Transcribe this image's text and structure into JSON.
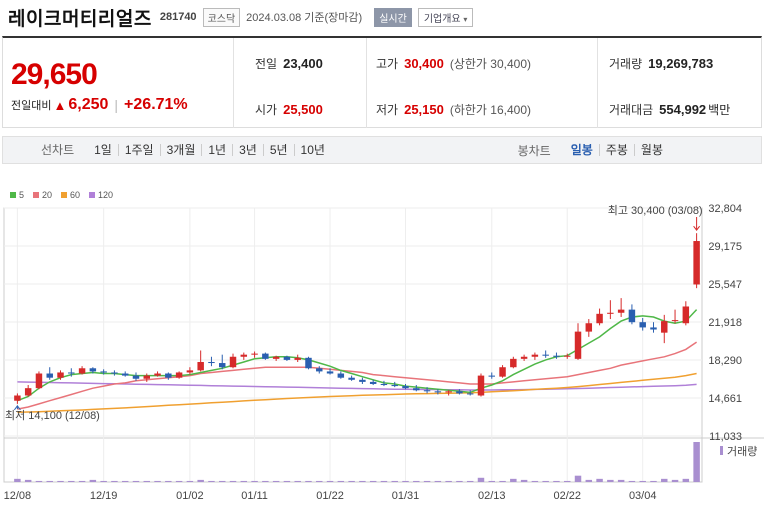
{
  "header": {
    "name": "레이크머티리얼즈",
    "code": "281740",
    "market": "코스닥",
    "date_text": "2024.03.08 기준(장마감)",
    "realtime": "실시간",
    "overview": "기업개요"
  },
  "summary": {
    "price": "29,650",
    "change_label": "전일대비",
    "change_value": "6,250",
    "change_rate": "+26.71%",
    "prev_label": "전일",
    "prev_value": "23,400",
    "open_label": "시가",
    "open_value": "25,500",
    "high_label": "고가",
    "high_value": "30,400",
    "upper_limit": "(상한가 30,400)",
    "low_label": "저가",
    "low_value": "25,150",
    "lower_limit": "(하한가 16,400)",
    "volume_label": "거래량",
    "volume_value": "19,269,783",
    "amount_label": "거래대금",
    "amount_value": "554,992",
    "amount_unit": "백만"
  },
  "periods": {
    "line_chart": "선차트",
    "items": [
      "1일",
      "1주일",
      "3개월",
      "1년",
      "3년",
      "5년",
      "10년"
    ],
    "candle_chart": "봉차트",
    "candle_items": [
      "일봉",
      "주봉",
      "월봉"
    ],
    "selected_candle": "일봉"
  },
  "colors": {
    "up": "#d62a2a",
    "down": "#2a5fb0",
    "ma5": "#4fb848",
    "ma20": "#e8747a",
    "ma60": "#f0a030",
    "ma120": "#b080d8",
    "volume": "#a98fd0"
  },
  "chart_data": {
    "type": "candlestick",
    "legend": [
      {
        "name": "5",
        "color": "#4fb848"
      },
      {
        "name": "20",
        "color": "#e8747a"
      },
      {
        "name": "60",
        "color": "#f0a030"
      },
      {
        "name": "120",
        "color": "#b080d8"
      }
    ],
    "y_ticks": [
      "32,804",
      "29,175",
      "25,547",
      "21,918",
      "18,290",
      "14,661",
      "11,033"
    ],
    "ylim": [
      11033,
      32804
    ],
    "x_ticks": [
      "12/08",
      "12/19",
      "01/02",
      "01/11",
      "01/22",
      "01/31",
      "02/13",
      "02/22",
      "03/04"
    ],
    "high_annotation": "최고 30,400 (03/08)",
    "low_annotation": "최저 14,100 (12/08)",
    "volume_label": "거래량",
    "candles": [
      {
        "o": 14400,
        "h": 15100,
        "l": 14100,
        "c": 14900
      },
      {
        "o": 14900,
        "h": 15900,
        "l": 14800,
        "c": 15600
      },
      {
        "o": 15600,
        "h": 17200,
        "l": 15500,
        "c": 17000
      },
      {
        "o": 17000,
        "h": 17600,
        "l": 16400,
        "c": 16600
      },
      {
        "o": 16600,
        "h": 17300,
        "l": 16400,
        "c": 17100
      },
      {
        "o": 17100,
        "h": 17500,
        "l": 16700,
        "c": 17000
      },
      {
        "o": 17000,
        "h": 17700,
        "l": 16900,
        "c": 17500
      },
      {
        "o": 17500,
        "h": 17600,
        "l": 17000,
        "c": 17200
      },
      {
        "o": 17200,
        "h": 17400,
        "l": 16900,
        "c": 17100
      },
      {
        "o": 17100,
        "h": 17300,
        "l": 16800,
        "c": 17000
      },
      {
        "o": 17000,
        "h": 17200,
        "l": 16700,
        "c": 16800
      },
      {
        "o": 16800,
        "h": 17100,
        "l": 16300,
        "c": 16500
      },
      {
        "o": 16500,
        "h": 17000,
        "l": 16200,
        "c": 16800
      },
      {
        "o": 16800,
        "h": 17200,
        "l": 16700,
        "c": 17000
      },
      {
        "o": 17000,
        "h": 17100,
        "l": 16400,
        "c": 16600
      },
      {
        "o": 16600,
        "h": 17200,
        "l": 16500,
        "c": 17100
      },
      {
        "o": 17100,
        "h": 17600,
        "l": 16900,
        "c": 17300
      },
      {
        "o": 17300,
        "h": 19200,
        "l": 17200,
        "c": 18100
      },
      {
        "o": 18100,
        "h": 18600,
        "l": 17700,
        "c": 18000
      },
      {
        "o": 18000,
        "h": 18800,
        "l": 17400,
        "c": 17600
      },
      {
        "o": 17600,
        "h": 18900,
        "l": 17500,
        "c": 18600
      },
      {
        "o": 18600,
        "h": 19000,
        "l": 18300,
        "c": 18800
      },
      {
        "o": 18800,
        "h": 19100,
        "l": 18500,
        "c": 18900
      },
      {
        "o": 18900,
        "h": 19000,
        "l": 18300,
        "c": 18400
      },
      {
        "o": 18400,
        "h": 18700,
        "l": 18200,
        "c": 18600
      },
      {
        "o": 18600,
        "h": 18700,
        "l": 18200,
        "c": 18300
      },
      {
        "o": 18300,
        "h": 18800,
        "l": 18100,
        "c": 18500
      },
      {
        "o": 18500,
        "h": 18600,
        "l": 17400,
        "c": 17500
      },
      {
        "o": 17500,
        "h": 17700,
        "l": 17000,
        "c": 17200
      },
      {
        "o": 17200,
        "h": 17500,
        "l": 16900,
        "c": 17000
      },
      {
        "o": 17000,
        "h": 17200,
        "l": 16500,
        "c": 16600
      },
      {
        "o": 16600,
        "h": 16800,
        "l": 16300,
        "c": 16400
      },
      {
        "o": 16400,
        "h": 16600,
        "l": 16000,
        "c": 16200
      },
      {
        "o": 16200,
        "h": 16400,
        "l": 15900,
        "c": 16000
      },
      {
        "o": 16000,
        "h": 16300,
        "l": 15800,
        "c": 15900
      },
      {
        "o": 15900,
        "h": 16200,
        "l": 15700,
        "c": 15800
      },
      {
        "o": 15800,
        "h": 16000,
        "l": 15500,
        "c": 15600
      },
      {
        "o": 15600,
        "h": 15900,
        "l": 15300,
        "c": 15400
      },
      {
        "o": 15400,
        "h": 15700,
        "l": 15100,
        "c": 15300
      },
      {
        "o": 15300,
        "h": 15500,
        "l": 15000,
        "c": 15200
      },
      {
        "o": 15200,
        "h": 15400,
        "l": 14900,
        "c": 15300
      },
      {
        "o": 15300,
        "h": 15500,
        "l": 15000,
        "c": 15100
      },
      {
        "o": 15100,
        "h": 15400,
        "l": 14900,
        "c": 15000
      },
      {
        "o": 14900,
        "h": 17000,
        "l": 14800,
        "c": 16800
      },
      {
        "o": 16800,
        "h": 17100,
        "l": 16500,
        "c": 16700
      },
      {
        "o": 16700,
        "h": 17800,
        "l": 16600,
        "c": 17600
      },
      {
        "o": 17600,
        "h": 18600,
        "l": 17500,
        "c": 18400
      },
      {
        "o": 18400,
        "h": 18800,
        "l": 18200,
        "c": 18600
      },
      {
        "o": 18600,
        "h": 19000,
        "l": 18300,
        "c": 18800
      },
      {
        "o": 18800,
        "h": 19200,
        "l": 18500,
        "c": 18700
      },
      {
        "o": 18700,
        "h": 19000,
        "l": 18400,
        "c": 18600
      },
      {
        "o": 18600,
        "h": 18900,
        "l": 18400,
        "c": 18700
      },
      {
        "o": 18400,
        "h": 21800,
        "l": 18300,
        "c": 21000
      },
      {
        "o": 21000,
        "h": 22200,
        "l": 20500,
        "c": 21800
      },
      {
        "o": 21800,
        "h": 23200,
        "l": 21600,
        "c": 22700
      },
      {
        "o": 22700,
        "h": 24000,
        "l": 22200,
        "c": 22800
      },
      {
        "o": 22800,
        "h": 24200,
        "l": 22400,
        "c": 23100
      },
      {
        "o": 23100,
        "h": 23600,
        "l": 21700,
        "c": 21900
      },
      {
        "o": 21900,
        "h": 22300,
        "l": 21100,
        "c": 21400
      },
      {
        "o": 21400,
        "h": 21900,
        "l": 20900,
        "c": 21200
      },
      {
        "o": 20900,
        "h": 22600,
        "l": 19900,
        "c": 22000
      },
      {
        "o": 22000,
        "h": 23100,
        "l": 21800,
        "c": 22100
      },
      {
        "o": 21800,
        "h": 23900,
        "l": 21600,
        "c": 23400
      },
      {
        "o": 25500,
        "h": 30400,
        "l": 25150,
        "c": 29650
      }
    ],
    "volume": [
      3,
      2,
      1,
      1,
      1,
      1,
      1,
      2,
      1,
      1,
      1,
      1,
      1,
      1,
      1,
      1,
      1,
      2,
      1,
      1,
      1,
      1,
      1,
      1,
      1,
      1,
      1,
      1,
      1,
      1,
      1,
      1,
      1,
      1,
      1,
      1,
      1,
      1,
      1,
      1,
      1,
      1,
      1,
      4,
      1,
      1,
      3,
      2,
      1,
      1,
      1,
      1,
      6,
      2,
      3,
      2,
      2,
      1,
      1,
      1,
      3,
      2,
      3,
      38
    ],
    "ma5": [
      14400,
      14800,
      15600,
      16200,
      16600,
      16900,
      17000,
      17100,
      17000,
      17000,
      16900,
      16800,
      16800,
      16800,
      16800,
      16800,
      16900,
      17100,
      17300,
      17500,
      17800,
      18100,
      18400,
      18500,
      18600,
      18600,
      18500,
      18300,
      18000,
      17700,
      17300,
      17000,
      16700,
      16400,
      16100,
      16000,
      15800,
      15700,
      15600,
      15500,
      15400,
      15300,
      15200,
      15600,
      15900,
      16300,
      16900,
      17400,
      17900,
      18300,
      18600,
      18700,
      19300,
      19900,
      20500,
      21300,
      22000,
      22400,
      22500,
      22400,
      22000,
      21800,
      22000,
      23100
    ],
    "ma20": [
      13600,
      13800,
      14100,
      14400,
      14700,
      15000,
      15300,
      15600,
      15800,
      16000,
      16100,
      16300,
      16400,
      16500,
      16600,
      16700,
      16800,
      17000,
      17100,
      17200,
      17300,
      17400,
      17500,
      17600,
      17600,
      17600,
      17600,
      17600,
      17500,
      17400,
      17300,
      17200,
      17100,
      16900,
      16800,
      16700,
      16600,
      16500,
      16400,
      16300,
      16200,
      16100,
      16000,
      16000,
      16000,
      16100,
      16200,
      16300,
      16400,
      16500,
      16600,
      16700,
      16900,
      17100,
      17300,
      17500,
      17800,
      18000,
      18200,
      18400,
      18600,
      18900,
      19300,
      20000
    ],
    "ma60": [
      13300,
      13320,
      13350,
      13400,
      13440,
      13480,
      13520,
      13570,
      13620,
      13670,
      13720,
      13780,
      13840,
      13900,
      13960,
      14020,
      14080,
      14140,
      14200,
      14260,
      14320,
      14380,
      14440,
      14500,
      14560,
      14610,
      14660,
      14710,
      14760,
      14800,
      14840,
      14880,
      14920,
      14950,
      14980,
      15010,
      15040,
      15060,
      15080,
      15100,
      15120,
      15140,
      15160,
      15200,
      15250,
      15300,
      15360,
      15420,
      15480,
      15540,
      15600,
      15660,
      15750,
      15850,
      15950,
      16050,
      16150,
      16250,
      16350,
      16450,
      16550,
      16650,
      16800,
      17000
    ],
    "ma120": [
      16200,
      16180,
      16160,
      16140,
      16120,
      16100,
      16080,
      16060,
      16040,
      16020,
      16000,
      15980,
      15960,
      15940,
      15920,
      15900,
      15880,
      15860,
      15840,
      15820,
      15800,
      15780,
      15760,
      15740,
      15720,
      15700,
      15680,
      15660,
      15640,
      15620,
      15600,
      15580,
      15560,
      15540,
      15520,
      15500,
      15490,
      15480,
      15470,
      15460,
      15450,
      15440,
      15430,
      15430,
      15430,
      15440,
      15450,
      15460,
      15480,
      15500,
      15520,
      15540,
      15570,
      15600,
      15630,
      15660,
      15690,
      15720,
      15750,
      15780,
      15810,
      15840,
      15880,
      15960
    ]
  }
}
